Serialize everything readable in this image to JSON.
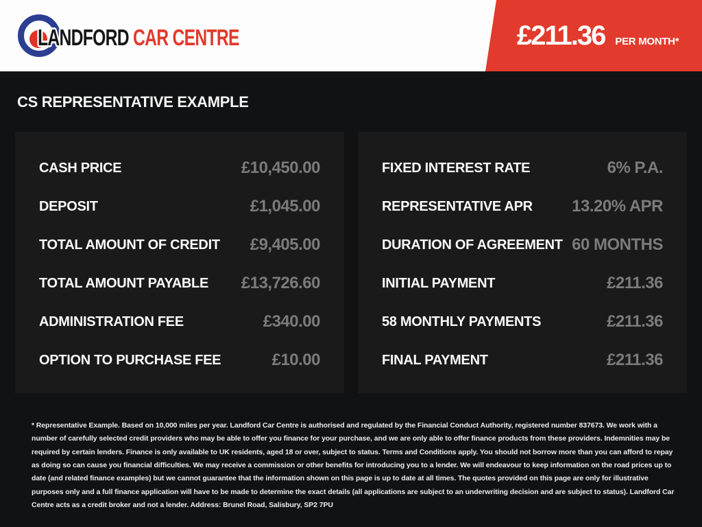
{
  "header": {
    "logo": {
      "name_primary": "LANDFORD",
      "name_secondary": " CAR CENTRE"
    },
    "price_banner": {
      "amount": "£211.36",
      "period": "PER MONTH*"
    }
  },
  "heading": "CS REPRESENTATIVE EXAMPLE",
  "finance": {
    "left": [
      {
        "label": "CASH PRICE",
        "value": "£10,450.00"
      },
      {
        "label": "DEPOSIT",
        "value": "£1,045.00"
      },
      {
        "label": "TOTAL AMOUNT OF CREDIT",
        "value": "£9,405.00"
      },
      {
        "label": "TOTAL AMOUNT PAYABLE",
        "value": "£13,726.60"
      },
      {
        "label": "ADMINISTRATION FEE",
        "value": "£340.00"
      },
      {
        "label": "OPTION TO PURCHASE FEE",
        "value": "£10.00"
      }
    ],
    "right": [
      {
        "label": "FIXED INTEREST RATE",
        "value": "6% P.A."
      },
      {
        "label": "REPRESENTATIVE APR",
        "value": "13.20% APR"
      },
      {
        "label": "DURATION OF AGREEMENT",
        "value": "60 MONTHS"
      },
      {
        "label": "INITIAL PAYMENT",
        "value": "£211.36"
      },
      {
        "label": "58 MONTHLY PAYMENTS",
        "value": "£211.36"
      },
      {
        "label": "FINAL PAYMENT",
        "value": "£211.36"
      }
    ]
  },
  "footer": {
    "disclaimer": "* Representative Example. Based on 10,000 miles per year. Landford Car Centre is authorised and regulated by the Financial Conduct Authority, registered number 837673. We work with a number of carefully selected credit providers who may be able to offer you finance for your purchase, and we are only able to offer finance products from these providers. Indemnities may be required by certain lenders. Finance is only available to UK residents, aged 18 or over, subject to status. Terms and Conditions apply. You should not borrow more than you can afford to repay as doing so can cause you financial difficulties. We may receive a commission or other benefits for introducing you to a lender. We will endeavour to keep information on the road prices up to date (and related finance examples) but we cannot guarantee that the information shown on this page is up to date at all times. The quotes provided on this page are only for illustrative purposes only and a full finance application will have to be made to determine the exact details (all applications are subject to an underwriting decision and are subject to status). Landford Car Centre acts as a credit broker and not a lender. Address: Brunel Road, Salisbury, SP2 7PU"
  },
  "colors": {
    "accent_red": "#e23a2c",
    "logo_blue": "#2c3e92",
    "logo_red": "#e23128",
    "page_background": "#111213",
    "panel_background": "#1a1a1a",
    "label_text": "#fafafa",
    "value_text": "#7b7b7b"
  }
}
